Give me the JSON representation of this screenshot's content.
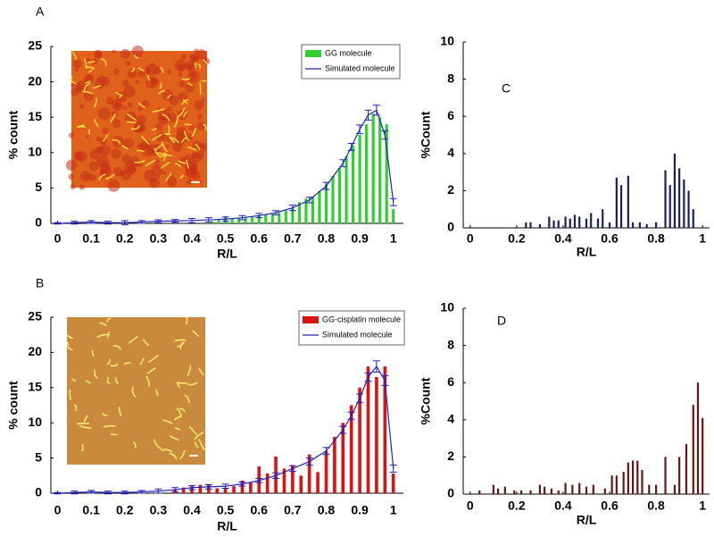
{
  "chart_data": [
    {
      "type": "bar",
      "label": "A",
      "xlabel": "R/L",
      "ylabel": "% count",
      "xlim": [
        -0.02,
        1.03
      ],
      "ylim": [
        0,
        25
      ],
      "xticks": [
        0,
        0.1,
        0.2,
        0.3,
        0.4,
        0.5,
        0.6,
        0.7,
        0.8,
        0.9,
        1
      ],
      "yticks": [
        0,
        5,
        10,
        15,
        20,
        25
      ],
      "legend": "upper right",
      "x": [
        0.46,
        0.48,
        0.5,
        0.52,
        0.54,
        0.56,
        0.58,
        0.6,
        0.62,
        0.64,
        0.66,
        0.68,
        0.7,
        0.72,
        0.74,
        0.76,
        0.78,
        0.8,
        0.82,
        0.84,
        0.86,
        0.88,
        0.9,
        0.92,
        0.94,
        0.96,
        0.98,
        1.0
      ],
      "series": [
        {
          "name": "GG molecule",
          "color": "#2fd12f",
          "values": [
            0.3,
            0.5,
            1.0,
            0.6,
            0.7,
            0.8,
            1.0,
            1.1,
            1.2,
            1.3,
            1.5,
            1.8,
            2.2,
            3.0,
            3.5,
            3.8,
            4.6,
            5.5,
            6.7,
            7.8,
            9.5,
            11,
            12.5,
            14,
            15.5,
            15,
            14,
            2
          ]
        },
        {
          "name": "Simulated molecule",
          "color": "#2323b8",
          "type": "line",
          "x": [
            0,
            0.05,
            0.1,
            0.15,
            0.2,
            0.25,
            0.3,
            0.35,
            0.4,
            0.45,
            0.5,
            0.55,
            0.6,
            0.65,
            0.7,
            0.75,
            0.8,
            0.85,
            0.875,
            0.9,
            0.925,
            0.95,
            0.975,
            1.0
          ],
          "values": [
            0,
            0.1,
            0.2,
            0.1,
            0.1,
            0.2,
            0.3,
            0.35,
            0.4,
            0.5,
            0.6,
            0.8,
            1.1,
            1.5,
            2.2,
            3.3,
            5.3,
            8.5,
            10.8,
            13.3,
            15.3,
            16,
            12.5,
            3
          ],
          "errors": [
            0.1,
            0.2,
            0.2,
            0.2,
            0.3,
            0.2,
            0.2,
            0.2,
            0.3,
            0.3,
            0.3,
            0.3,
            0.3,
            0.3,
            0.4,
            0.4,
            0.5,
            0.5,
            0.5,
            0.6,
            0.7,
            0.7,
            0.6,
            0.5
          ]
        }
      ]
    },
    {
      "type": "bar",
      "label": "B",
      "xlabel": "R/L",
      "ylabel": "% count",
      "xlim": [
        -0.02,
        1.03
      ],
      "ylim": [
        0,
        25
      ],
      "xticks": [
        0,
        0.1,
        0.2,
        0.3,
        0.4,
        0.5,
        0.6,
        0.7,
        0.8,
        0.9,
        1
      ],
      "yticks": [
        0,
        5,
        10,
        15,
        20,
        25
      ],
      "legend": "upper right",
      "x": [
        0.35,
        0.375,
        0.4,
        0.425,
        0.45,
        0.475,
        0.5,
        0.525,
        0.55,
        0.575,
        0.6,
        0.625,
        0.65,
        0.675,
        0.7,
        0.725,
        0.75,
        0.775,
        0.8,
        0.825,
        0.85,
        0.875,
        0.9,
        0.925,
        0.95,
        0.975,
        1.0
      ],
      "series": [
        {
          "name": "GG-cisplatin molecule",
          "color": "#dd1111",
          "values": [
            0.5,
            0.8,
            1.0,
            1.2,
            1.3,
            0.7,
            0.8,
            1.0,
            1.8,
            1.5,
            3.8,
            2.8,
            5.2,
            3.5,
            4.0,
            2.5,
            5.5,
            3.0,
            6.0,
            8.0,
            10.0,
            12.5,
            15.0,
            18.0,
            16.5,
            18.0,
            2.8
          ]
        },
        {
          "name": "Simulated molecule",
          "color": "#2323b8",
          "type": "line",
          "x": [
            0,
            0.05,
            0.1,
            0.15,
            0.2,
            0.25,
            0.3,
            0.35,
            0.4,
            0.45,
            0.5,
            0.55,
            0.6,
            0.65,
            0.7,
            0.75,
            0.8,
            0.85,
            0.875,
            0.9,
            0.925,
            0.95,
            0.975,
            1.0
          ],
          "values": [
            0,
            0.1,
            0.2,
            0.1,
            0.1,
            0.2,
            0.3,
            0.5,
            0.8,
            0.9,
            1.0,
            1.3,
            1.8,
            2.5,
            3.5,
            4.5,
            6.0,
            9.0,
            11.0,
            13.5,
            16.5,
            18,
            16,
            3.5
          ],
          "errors": [
            0.1,
            0.2,
            0.2,
            0.2,
            0.2,
            0.2,
            0.3,
            0.3,
            0.3,
            0.3,
            0.3,
            0.3,
            0.3,
            0.4,
            0.4,
            0.5,
            0.5,
            0.5,
            0.5,
            0.6,
            0.6,
            0.8,
            0.7,
            0.5
          ]
        }
      ]
    },
    {
      "type": "bar",
      "label": "C",
      "xlabel": "R/L",
      "ylabel": "%Count",
      "xlim": [
        -0.03,
        1.03
      ],
      "ylim": [
        0,
        10
      ],
      "xticks": [
        0,
        0.2,
        0.4,
        0.6,
        0.8,
        1
      ],
      "yticks": [
        0,
        2,
        4,
        6,
        8,
        10
      ],
      "color": "#1a1f5e",
      "x": [
        0.24,
        0.26,
        0.3,
        0.34,
        0.36,
        0.38,
        0.41,
        0.43,
        0.45,
        0.47,
        0.5,
        0.52,
        0.55,
        0.57,
        0.6,
        0.63,
        0.65,
        0.68,
        0.7,
        0.73,
        0.76,
        0.8,
        0.84,
        0.86,
        0.88,
        0.9,
        0.92,
        0.94,
        0.96
      ],
      "values": [
        0.3,
        0.3,
        0.2,
        0.6,
        0.4,
        0.4,
        0.6,
        0.5,
        0.7,
        0.6,
        0.5,
        0.8,
        0.5,
        1.0,
        0.3,
        2.7,
        2.3,
        2.8,
        0.3,
        0.3,
        0.2,
        0.3,
        3.1,
        2.3,
        4.0,
        3.2,
        2.6,
        2.0,
        1.0
      ]
    },
    {
      "type": "bar",
      "label": "D",
      "xlabel": "R/L",
      "ylabel": "%Count",
      "xlim": [
        -0.03,
        1.03
      ],
      "ylim": [
        0,
        10
      ],
      "xticks": [
        0,
        0.2,
        0.4,
        0.6,
        0.8,
        1
      ],
      "yticks": [
        0,
        2,
        4,
        6,
        8,
        10
      ],
      "color": "#6b1414",
      "x": [
        0.04,
        0.1,
        0.12,
        0.15,
        0.19,
        0.22,
        0.26,
        0.3,
        0.32,
        0.35,
        0.38,
        0.41,
        0.44,
        0.47,
        0.5,
        0.53,
        0.58,
        0.61,
        0.63,
        0.66,
        0.68,
        0.7,
        0.72,
        0.74,
        0.77,
        0.8,
        0.84,
        0.88,
        0.9,
        0.93,
        0.96,
        0.98,
        1.0
      ],
      "values": [
        0.2,
        0.5,
        0.3,
        0.4,
        0.2,
        0.2,
        0.2,
        0.5,
        0.4,
        0.3,
        0.2,
        0.6,
        0.5,
        0.6,
        0.4,
        0.5,
        0.3,
        1.0,
        1.0,
        1.2,
        1.7,
        1.8,
        1.8,
        1.3,
        0.5,
        0.5,
        2.0,
        0.5,
        2.0,
        2.7,
        4.8,
        6.0,
        4.1
      ]
    }
  ]
}
